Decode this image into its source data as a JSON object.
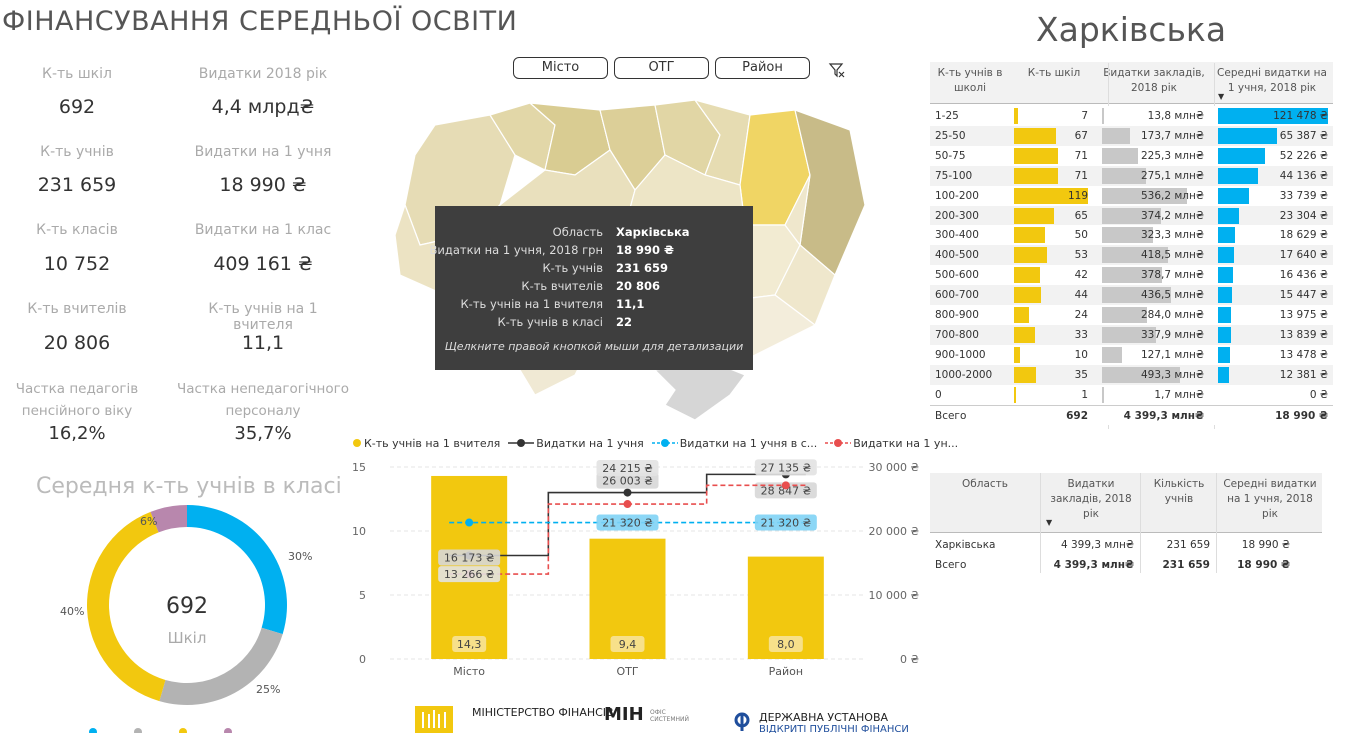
{
  "title": "ФІНАНСУВАННЯ СЕРЕДНЬОЇ ОСВІТИ",
  "kpis": [
    {
      "label": "К-ть шкіл",
      "value": "692"
    },
    {
      "label": "Видатки 2018 рік",
      "value": "4,4 млрд₴"
    },
    {
      "label": "К-ть учнів",
      "value": "231 659"
    },
    {
      "label": "Видатки на 1 учня",
      "value": "18 990 ₴"
    },
    {
      "label": "К-ть класів",
      "value": "10 752"
    },
    {
      "label": "Видатки на 1 клас",
      "value": "409 161 ₴"
    },
    {
      "label": "К-ть вчителів",
      "value": "20 806"
    },
    {
      "label": "К-ть учнів на 1 вчителя",
      "value": "11,1"
    },
    {
      "label": "Частка педагогів пенсійного віку",
      "value": "16,2%"
    },
    {
      "label": "Частка непедагогічного персоналу",
      "value": "35,7%"
    }
  ],
  "donut": {
    "title": "Середня к-ть учнів в класі",
    "center_value": "692",
    "center_label": "Шкіл",
    "slices": [
      {
        "label": "30%",
        "value": 30,
        "color": "#00b0f0"
      },
      {
        "label": "25%",
        "value": 25,
        "color": "#b3b3b3"
      },
      {
        "label": "40%",
        "value": 40,
        "color": "#f2c80f"
      },
      {
        "label": "6%",
        "value": 6,
        "color": "#b887ad"
      }
    ]
  },
  "slicers": [
    "Місто",
    "ОТГ",
    "Район"
  ],
  "filter_icon": "filter-clear-icon",
  "tooltip": {
    "rows": [
      {
        "k": "Область",
        "v": "Харківська"
      },
      {
        "k": "Видатки на 1 учня, 2018 грн",
        "v": "18 990 ₴"
      },
      {
        "k": "К-ть учнів",
        "v": "231 659"
      },
      {
        "k": "К-ть вчителів",
        "v": "20 806"
      },
      {
        "k": "К-ть учнів на 1 вчителя",
        "v": "11,1"
      },
      {
        "k": "К-ть учнів в класі",
        "v": "22"
      }
    ],
    "note": "Щелкните правой кнопкой мыши для детализации"
  },
  "region_title": "Харківська",
  "table1": {
    "headers": [
      "К-ть учнів в школі",
      "К-ть шкіл",
      "Видатки закладів, 2018 рік",
      "Середні видатки на 1 учня, 2018 рік"
    ],
    "rows": [
      {
        "band": "1-25",
        "schools": "7",
        "spend": "13,8 млн₴",
        "per": "121 478 ₴",
        "s": 7,
        "e": 13.8,
        "p": 121478
      },
      {
        "band": "25-50",
        "schools": "67",
        "spend": "173,7 млн₴",
        "per": "65 387 ₴",
        "s": 67,
        "e": 173.7,
        "p": 65387
      },
      {
        "band": "50-75",
        "schools": "71",
        "spend": "225,3 млн₴",
        "per": "52 226 ₴",
        "s": 71,
        "e": 225.3,
        "p": 52226
      },
      {
        "band": "75-100",
        "schools": "71",
        "spend": "275,1 млн₴",
        "per": "44 136 ₴",
        "s": 71,
        "e": 275.1,
        "p": 44136
      },
      {
        "band": "100-200",
        "schools": "119",
        "spend": "536,2 млн₴",
        "per": "33 739 ₴",
        "s": 119,
        "e": 536.2,
        "p": 33739
      },
      {
        "band": "200-300",
        "schools": "65",
        "spend": "374,2 млн₴",
        "per": "23 304 ₴",
        "s": 65,
        "e": 374.2,
        "p": 23304
      },
      {
        "band": "300-400",
        "schools": "50",
        "spend": "323,3 млн₴",
        "per": "18 629 ₴",
        "s": 50,
        "e": 323.3,
        "p": 18629
      },
      {
        "band": "400-500",
        "schools": "53",
        "spend": "418,5 млн₴",
        "per": "17 640 ₴",
        "s": 53,
        "e": 418.5,
        "p": 17640
      },
      {
        "band": "500-600",
        "schools": "42",
        "spend": "378,7 млн₴",
        "per": "16 436 ₴",
        "s": 42,
        "e": 378.7,
        "p": 16436
      },
      {
        "band": "600-700",
        "schools": "44",
        "spend": "436,5 млн₴",
        "per": "15 447 ₴",
        "s": 44,
        "e": 436.5,
        "p": 15447
      },
      {
        "band": "800-900",
        "schools": "24",
        "spend": "284,0 млн₴",
        "per": "13 975 ₴",
        "s": 24,
        "e": 284.0,
        "p": 13975
      },
      {
        "band": "700-800",
        "schools": "33",
        "spend": "337,9 млн₴",
        "per": "13 839 ₴",
        "s": 33,
        "e": 337.9,
        "p": 13839
      },
      {
        "band": "900-1000",
        "schools": "10",
        "spend": "127,1 млн₴",
        "per": "13 478 ₴",
        "s": 10,
        "e": 127.1,
        "p": 13478
      },
      {
        "band": "1000-2000",
        "schools": "35",
        "spend": "493,3 млн₴",
        "per": "12 381 ₴",
        "s": 35,
        "e": 493.3,
        "p": 12381
      },
      {
        "band": "0",
        "schools": "1",
        "spend": "1,7 млн₴",
        "per": "0 ₴",
        "s": 1,
        "e": 1.7,
        "p": 0
      }
    ],
    "total": {
      "band": "Всего",
      "schools": "692",
      "spend": "4 399,3 млн₴",
      "per": "18 990 ₴"
    }
  },
  "table2": {
    "headers": [
      "Область",
      "Видатки закладів, 2018 рік",
      "Кількість учнів",
      "Середні видатки на 1 учня, 2018 рік"
    ],
    "rows": [
      {
        "a": "Харківська",
        "b": "4 399,3 млн₴",
        "c": "231 659",
        "d": "18 990 ₴"
      }
    ],
    "total": {
      "a": "Всего",
      "b": "4 399,3 млн₴",
      "c": "231 659",
      "d": "18 990 ₴"
    }
  },
  "chart_data": {
    "type": "bar",
    "categories": [
      "Місто",
      "ОТГ",
      "Район"
    ],
    "series": [
      {
        "name": "К-ть учнів на 1 вчителя",
        "kind": "bar",
        "axis": "left",
        "values": [
          14.3,
          9.4,
          8.0
        ],
        "labels": [
          "14,3",
          "9,4",
          "8,0"
        ],
        "color": "#f2c80f"
      },
      {
        "name": "Видатки на 1 учня",
        "kind": "step-line",
        "axis": "right",
        "values": [
          16173,
          26003,
          28847
        ],
        "labels": [
          "16 173 ₴",
          "26 003 ₴",
          "28 847 ₴"
        ],
        "color": "#333333"
      },
      {
        "name": "Видатки на 1 учня в с...",
        "kind": "dashed-line",
        "axis": "right",
        "values": [
          21320,
          21320,
          21320
        ],
        "labels": [
          "",
          "21 320 ₴",
          "21 320 ₴"
        ],
        "color": "#00b0f0"
      },
      {
        "name": "Видатки на 1 ун...",
        "kind": "dashed-line",
        "axis": "right",
        "values": [
          13266,
          24215,
          27135
        ],
        "labels": [
          "13 266 ₴",
          "24 215 ₴",
          "27 135 ₴"
        ],
        "color": "#e84e4e"
      }
    ],
    "y_left": {
      "min": 0,
      "max": 15,
      "ticks": [
        "0",
        "5",
        "10",
        "15"
      ],
      "tick_values": [
        0,
        5,
        10,
        15
      ]
    },
    "y_right": {
      "min": 0,
      "max": 30000,
      "ticks": [
        "0 ₴",
        "10 000 ₴",
        "20 000 ₴",
        "30 000 ₴"
      ],
      "tick_values": [
        0,
        10000,
        20000,
        30000
      ]
    },
    "grid": true,
    "legend": "top-left"
  },
  "logos": {
    "ministry": "МІНІСТЕРСТВО ФІНАНСІВ",
    "min": "МІН",
    "min_sub": "ОФІС СИСТЕМНИЙ",
    "state": "ДЕРЖАВНА УСТАНОВА",
    "state_sub": "ВІДКРИТІ ПУБЛІЧНІ ФІНАНСИ"
  }
}
